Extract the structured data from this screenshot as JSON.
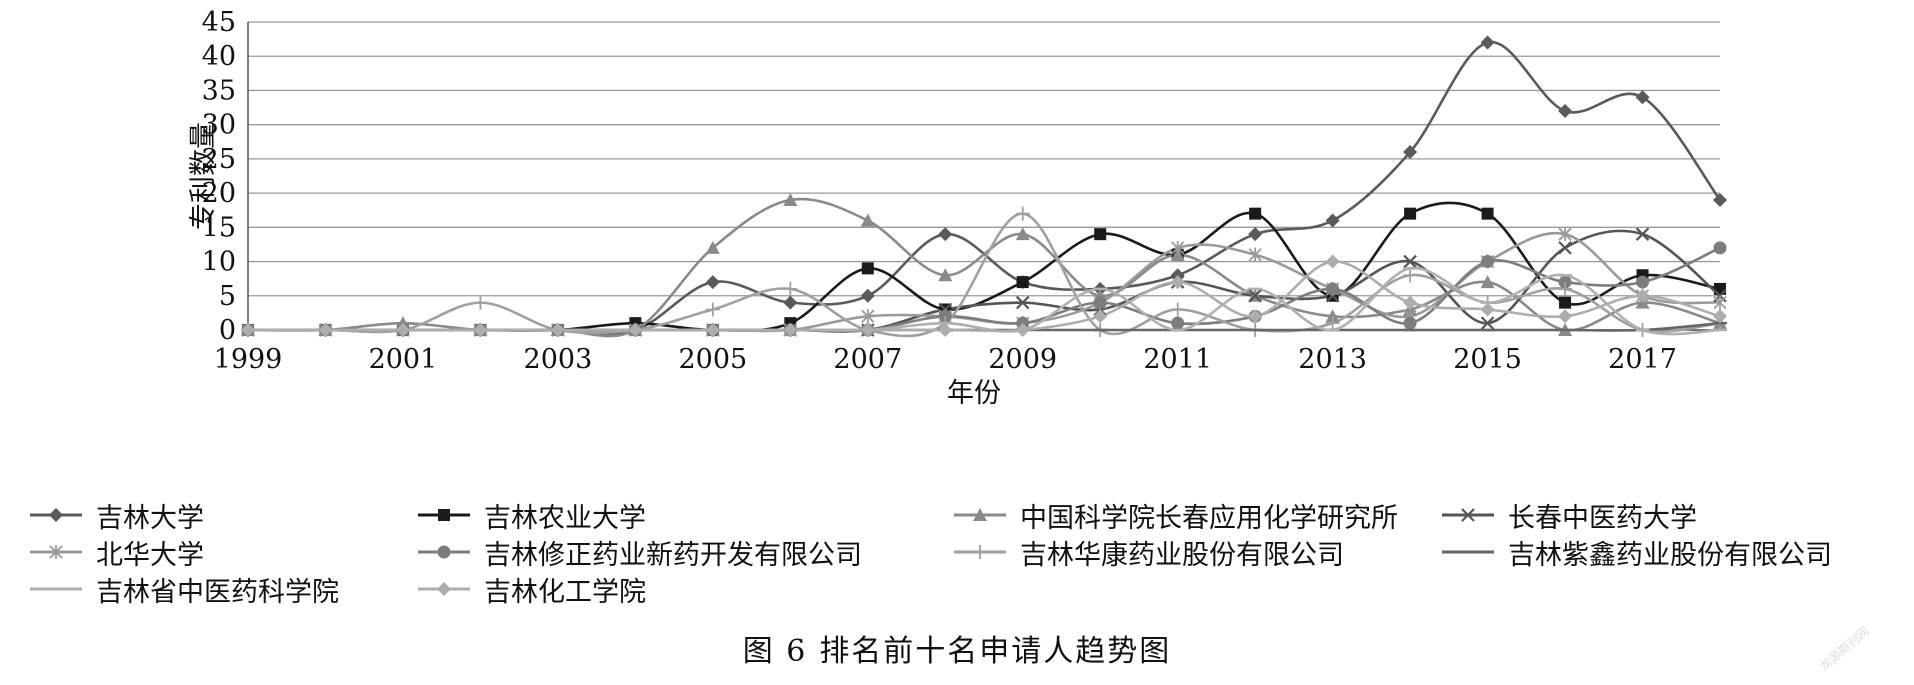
{
  "chart_data": {
    "type": "line",
    "ylabel": "专利数量",
    "xlabel": "年份",
    "ylim": [
      0,
      45
    ],
    "y_ticks": [
      "0",
      "5",
      "10",
      "15",
      "20",
      "25",
      "30",
      "35",
      "40",
      "45"
    ],
    "x_ticks": [
      "1999",
      "2001",
      "2003",
      "2005",
      "2007",
      "2009",
      "2011",
      "2013",
      "2015",
      "2017"
    ],
    "x": [
      1999,
      2000,
      2001,
      2002,
      2003,
      2004,
      2005,
      2006,
      2007,
      2008,
      2009,
      2010,
      2011,
      2012,
      2013,
      2014,
      2015,
      2016,
      2017,
      2018
    ],
    "grid": "horizontal",
    "legend_position": "bottom",
    "series": [
      {
        "name": "吉林大学",
        "color": "#5a5a5a",
        "marker": "diamond",
        "values": [
          0,
          0,
          0,
          0,
          0,
          0,
          7,
          4,
          5,
          14,
          7,
          6,
          8,
          14,
          16,
          26,
          42,
          32,
          34,
          19
        ]
      },
      {
        "name": "吉林农业大学",
        "color": "#1a1a1a",
        "marker": "square",
        "values": [
          0,
          0,
          0,
          0,
          0,
          1,
          0,
          1,
          9,
          3,
          7,
          14,
          11,
          17,
          5,
          17,
          17,
          4,
          8,
          6
        ]
      },
      {
        "name": "中国科学院长春应用化学研究所",
        "color": "#8a8a8a",
        "marker": "triangle",
        "values": [
          0,
          0,
          1,
          0,
          0,
          0,
          12,
          19,
          16,
          8,
          14,
          5,
          11,
          5,
          2,
          3,
          7,
          0,
          4,
          1
        ]
      },
      {
        "name": "长春中医药大学",
        "color": "#555555",
        "marker": "x",
        "values": [
          0,
          0,
          0,
          0,
          0,
          0,
          0,
          0,
          0,
          3,
          4,
          3,
          7,
          5,
          5,
          10,
          1,
          12,
          14,
          5
        ]
      },
      {
        "name": "北华大学",
        "color": "#9a9a9a",
        "marker": "asterisk",
        "values": [
          0,
          0,
          0,
          0,
          0,
          0,
          0,
          0,
          2,
          2,
          1,
          4,
          12,
          11,
          6,
          2,
          10,
          14,
          5,
          4
        ]
      },
      {
        "name": "吉林修正药业新药开发有限公司",
        "color": "#7d7d7d",
        "marker": "circle",
        "values": [
          0,
          0,
          0,
          0,
          0,
          0,
          0,
          0,
          0,
          2,
          1,
          4,
          1,
          2,
          6,
          1,
          10,
          7,
          7,
          12
        ]
      },
      {
        "name": "吉林华康药业股份有限公司",
        "color": "#a0a0a0",
        "marker": "plus",
        "values": [
          0,
          0,
          0,
          4,
          0,
          0,
          3,
          6,
          0,
          1,
          17,
          0,
          3,
          0,
          1,
          8,
          4,
          6,
          0,
          1
        ]
      },
      {
        "name": "吉林紫鑫药业股份有限公司",
        "color": "#666666",
        "marker": "dash",
        "values": [
          0,
          0,
          0,
          0,
          0,
          0,
          0,
          0,
          0,
          0,
          0,
          0,
          0,
          0,
          0,
          0,
          0,
          0,
          0,
          1
        ]
      },
      {
        "name": "吉林省中医药科学院",
        "color": "#b0b0b0",
        "marker": "dash",
        "values": [
          0,
          0,
          0,
          0,
          0,
          0,
          0,
          0,
          0,
          1,
          0,
          6,
          0,
          6,
          0,
          9,
          4,
          8,
          0,
          0
        ]
      },
      {
        "name": "吉林化工学院",
        "color": "#adadad",
        "marker": "diamond",
        "values": [
          0,
          0,
          0,
          0,
          0,
          0,
          0,
          0,
          0,
          0,
          0,
          2,
          7,
          2,
          10,
          4,
          3,
          2,
          5,
          2
        ]
      }
    ]
  },
  "caption": {
    "figure": "图 6",
    "title": "排名前十名申请人趋势图"
  },
  "watermark": "龙源期刊网"
}
